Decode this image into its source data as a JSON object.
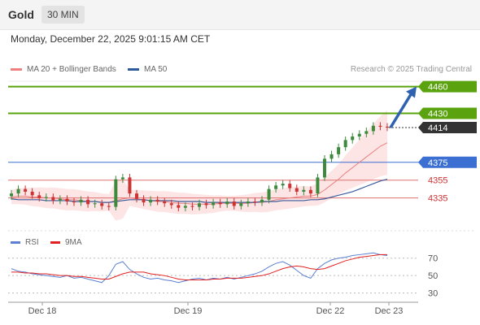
{
  "header": {
    "instrument": "Gold",
    "timeframe": "30 MIN"
  },
  "timestamp": "Monday, December 22, 2025 9:01:15 AM CET",
  "legend": {
    "items": [
      {
        "label": "MA 20 + Bollinger Bands",
        "color": "#f08080"
      },
      {
        "label": "MA 50",
        "color": "#2c5a9a"
      }
    ],
    "research": "Research © 2025 Trading Central"
  },
  "rsi_legend": {
    "items": [
      {
        "label": "RSI",
        "color": "#5b7fd1"
      },
      {
        "label": "9MA",
        "color": "#e02020"
      }
    ]
  },
  "colors": {
    "resistance": "#5aa30f",
    "support": "#3b6fd1",
    "pivot": "#333333",
    "weak_support": "#e07070",
    "weak_support_text": "#d03030",
    "up_candle": "#3d8a3d",
    "down_candle": "#cc3333",
    "band_fill": "#fde0e0",
    "arrow": "#2e62b0",
    "axis_text": "#555555"
  },
  "chart_data": [
    {
      "type": "candlestick",
      "title": "Gold",
      "x_labels": [
        "Dec 18",
        "Dec 19",
        "Dec 22",
        "Dec 23"
      ],
      "ylim": [
        4300,
        4466
      ],
      "levels": [
        {
          "value": 4460,
          "label": "4460",
          "kind": "resistance"
        },
        {
          "value": 4430,
          "label": "4430",
          "kind": "resistance"
        },
        {
          "value": 4414,
          "label": "4414",
          "kind": "pivot"
        },
        {
          "value": 4375,
          "label": "4375",
          "kind": "support"
        },
        {
          "value": 4355,
          "label": "4355",
          "kind": "weak_support"
        },
        {
          "value": 4335,
          "label": "4335",
          "kind": "weak_support"
        }
      ],
      "price_path": [
        4340,
        4345,
        4342,
        4338,
        4335,
        4336,
        4332,
        4334,
        4331,
        4330,
        4333,
        4328,
        4329,
        4326,
        4325,
        4356,
        4358,
        4340,
        4334,
        4330,
        4333,
        4331,
        4329,
        4327,
        4324,
        4326,
        4325,
        4329,
        4327,
        4330,
        4328,
        4331,
        4326,
        4329,
        4331,
        4330,
        4333,
        4345,
        4349,
        4351,
        4346,
        4342,
        4344,
        4340,
        4358,
        4379,
        4384,
        4392,
        4400,
        4404,
        4407,
        4410,
        4416,
        4415,
        4414
      ],
      "ma20": [
        4336,
        4337,
        4337,
        4336,
        4336,
        4335,
        4335,
        4334,
        4333,
        4333,
        4332,
        4331,
        4331,
        4330,
        4330,
        4332,
        4334,
        4335,
        4334,
        4333,
        4332,
        4331,
        4331,
        4330,
        4329,
        4329,
        4328,
        4328,
        4328,
        4328,
        4329,
        4329,
        4329,
        4329,
        4329,
        4330,
        4330,
        4331,
        4333,
        4334,
        4335,
        4336,
        4337,
        4337,
        4339,
        4344,
        4350,
        4356,
        4363,
        4369,
        4375,
        4381,
        4387,
        4393,
        4397
      ],
      "ma50": [
        4334,
        4333,
        4333,
        4333,
        4333,
        4332,
        4332,
        4332,
        4332,
        4331,
        4331,
        4331,
        4331,
        4330,
        4330,
        4331,
        4332,
        4333,
        4333,
        4333,
        4332,
        4332,
        4332,
        4332,
        4331,
        4331,
        4331,
        4331,
        4330,
        4330,
        4330,
        4330,
        4330,
        4330,
        4330,
        4330,
        4331,
        4331,
        4331,
        4332,
        4332,
        4332,
        4332,
        4333,
        4333,
        4334,
        4336,
        4338,
        4340,
        4342,
        4345,
        4348,
        4351,
        4354,
        4356
      ],
      "forecast": {
        "from": 4414,
        "to": 4460
      }
    },
    {
      "type": "line",
      "title": "RSI",
      "ylim": [
        25,
        80
      ],
      "y_ticks": [
        {
          "value": 70,
          "label": "70"
        },
        {
          "value": 50,
          "label": "50"
        },
        {
          "value": 30,
          "label": "30"
        }
      ],
      "series": [
        {
          "name": "RSI",
          "values": [
            58,
            55,
            54,
            52,
            51,
            50,
            49,
            48,
            50,
            47,
            48,
            46,
            44,
            42,
            50,
            63,
            66,
            57,
            52,
            48,
            46,
            47,
            45,
            44,
            42,
            44,
            46,
            47,
            45,
            47,
            46,
            48,
            46,
            48,
            50,
            52,
            55,
            60,
            64,
            66,
            62,
            56,
            50,
            47,
            58,
            64,
            68,
            70,
            71,
            73,
            74,
            75,
            76,
            74,
            73
          ]
        },
        {
          "name": "9MA",
          "values": [
            54,
            54,
            53,
            53,
            52,
            52,
            51,
            50,
            50,
            49,
            49,
            48,
            47,
            46,
            46,
            49,
            52,
            54,
            54,
            54,
            52,
            51,
            50,
            48,
            46,
            45,
            45,
            45,
            45,
            46,
            46,
            47,
            47,
            47,
            48,
            49,
            50,
            52,
            55,
            58,
            60,
            61,
            60,
            58,
            57,
            58,
            61,
            64,
            67,
            69,
            71,
            72,
            73,
            74,
            74
          ]
        }
      ]
    }
  ]
}
